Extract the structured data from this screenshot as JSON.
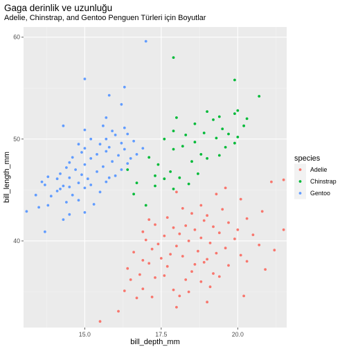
{
  "chart_data": {
    "type": "scatter",
    "title": "Gaga derinlik ve uzunluğu",
    "subtitle": "Adelie, Chinstrap, and Gentoo Penguen Türleri için Boyutlar",
    "xlabel": "bill_depth_mm",
    "ylabel": "bill_length_mm",
    "xlim": [
      13.0,
      21.6
    ],
    "ylim": [
      31.5,
      61.0
    ],
    "x_ticks": [
      15.0,
      17.5,
      20.0
    ],
    "x_tick_labels": [
      "15.0",
      "17.5",
      "20.0"
    ],
    "y_ticks": [
      40,
      50,
      60
    ],
    "y_tick_labels": [
      "40",
      "50",
      "60"
    ],
    "grid": true,
    "legend": {
      "title": "species",
      "position": "right"
    },
    "series": [
      {
        "name": "Adelie",
        "color": "#F8766D",
        "points": [
          [
            15.5,
            32.1
          ],
          [
            16.1,
            33.1
          ],
          [
            18.0,
            33.5
          ],
          [
            19.0,
            34.0
          ],
          [
            20.2,
            34.6
          ],
          [
            16.7,
            34.4
          ],
          [
            17.2,
            34.5
          ],
          [
            18.1,
            34.6
          ],
          [
            18.4,
            35.0
          ],
          [
            16.3,
            35.1
          ],
          [
            17.9,
            35.2
          ],
          [
            16.9,
            35.3
          ],
          [
            19.1,
            35.5
          ],
          [
            18.8,
            36.0
          ],
          [
            16.5,
            36.2
          ],
          [
            18.3,
            36.2
          ],
          [
            17.3,
            36.4
          ],
          [
            19.4,
            36.5
          ],
          [
            17.6,
            36.6
          ],
          [
            16.8,
            36.7
          ],
          [
            19.2,
            36.8
          ],
          [
            18.5,
            37.0
          ],
          [
            20.9,
            37.2
          ],
          [
            16.4,
            37.3
          ],
          [
            17.7,
            37.5
          ],
          [
            19.7,
            37.6
          ],
          [
            18.6,
            37.7
          ],
          [
            17.1,
            37.8
          ],
          [
            18.9,
            37.9
          ],
          [
            20.3,
            38.0
          ],
          [
            16.9,
            38.1
          ],
          [
            19.0,
            38.2
          ],
          [
            17.5,
            38.3
          ],
          [
            18.2,
            38.5
          ],
          [
            20.1,
            38.6
          ],
          [
            17.8,
            38.7
          ],
          [
            19.3,
            38.8
          ],
          [
            16.6,
            38.9
          ],
          [
            18.7,
            39.0
          ],
          [
            21.2,
            39.1
          ],
          [
            17.2,
            39.2
          ],
          [
            19.6,
            39.3
          ],
          [
            18.0,
            39.5
          ],
          [
            20.7,
            39.6
          ],
          [
            17.4,
            39.7
          ],
          [
            19.1,
            39.8
          ],
          [
            18.4,
            40.0
          ],
          [
            17.0,
            40.1
          ],
          [
            19.9,
            40.2
          ],
          [
            18.8,
            40.3
          ],
          [
            17.6,
            40.5
          ],
          [
            20.5,
            40.6
          ],
          [
            18.1,
            40.7
          ],
          [
            19.4,
            40.8
          ],
          [
            16.9,
            40.9
          ],
          [
            18.6,
            41.1
          ],
          [
            20.0,
            41.1
          ],
          [
            17.9,
            41.3
          ],
          [
            19.2,
            41.4
          ],
          [
            18.3,
            41.5
          ],
          [
            21.5,
            41.1
          ],
          [
            17.3,
            41.6
          ],
          [
            19.7,
            41.8
          ],
          [
            18.9,
            42.0
          ],
          [
            20.3,
            42.2
          ],
          [
            17.7,
            42.3
          ],
          [
            19.0,
            42.5
          ],
          [
            18.5,
            42.7
          ],
          [
            20.8,
            42.9
          ],
          [
            17.1,
            42.1
          ],
          [
            19.5,
            43.1
          ],
          [
            18.2,
            43.2
          ],
          [
            18.8,
            43.5
          ],
          [
            20.1,
            44.1
          ],
          [
            19.3,
            44.6
          ],
          [
            21.1,
            45.8
          ],
          [
            21.5,
            46.0
          ],
          [
            19.6,
            45.2
          ],
          [
            18.0,
            44.8
          ]
        ]
      },
      {
        "name": "Chinstrap",
        "color": "#00BA38",
        "points": [
          [
            17.0,
            43.5
          ],
          [
            16.6,
            44.6
          ],
          [
            17.9,
            45.1
          ],
          [
            17.3,
            45.4
          ],
          [
            18.4,
            45.6
          ],
          [
            16.7,
            45.7
          ],
          [
            17.6,
            46.1
          ],
          [
            18.1,
            46.2
          ],
          [
            17.3,
            46.4
          ],
          [
            18.7,
            46.6
          ],
          [
            17.8,
            46.8
          ],
          [
            16.4,
            47.0
          ],
          [
            17.4,
            47.5
          ],
          [
            18.5,
            47.8
          ],
          [
            19.0,
            48.1
          ],
          [
            17.1,
            48.2
          ],
          [
            19.4,
            48.4
          ],
          [
            18.8,
            48.5
          ],
          [
            17.9,
            49.0
          ],
          [
            19.6,
            49.2
          ],
          [
            18.2,
            49.3
          ],
          [
            19.9,
            49.6
          ],
          [
            18.6,
            49.7
          ],
          [
            17.6,
            50.0
          ],
          [
            19.3,
            50.1
          ],
          [
            20.0,
            50.2
          ],
          [
            18.3,
            50.4
          ],
          [
            19.7,
            50.5
          ],
          [
            18.9,
            50.6
          ],
          [
            17.9,
            50.8
          ],
          [
            19.5,
            51.0
          ],
          [
            20.2,
            51.3
          ],
          [
            18.6,
            51.5
          ],
          [
            19.2,
            51.9
          ],
          [
            20.3,
            52.0
          ],
          [
            18.0,
            52.1
          ],
          [
            19.4,
            52.2
          ],
          [
            19.9,
            52.5
          ],
          [
            20.0,
            52.8
          ],
          [
            19.0,
            52.7
          ],
          [
            20.7,
            54.2
          ],
          [
            19.9,
            55.8
          ],
          [
            17.9,
            58.0
          ]
        ]
      },
      {
        "name": "Gentoo",
        "color": "#619CFF",
        "points": [
          [
            13.1,
            42.9
          ],
          [
            13.7,
            40.9
          ],
          [
            14.3,
            42.1
          ],
          [
            13.5,
            43.3
          ],
          [
            14.5,
            42.6
          ],
          [
            13.8,
            43.5
          ],
          [
            15.0,
            42.8
          ],
          [
            13.9,
            44.4
          ],
          [
            14.1,
            44.9
          ],
          [
            14.4,
            43.8
          ],
          [
            15.3,
            43.6
          ],
          [
            14.8,
            44.0
          ],
          [
            13.4,
            44.5
          ],
          [
            14.6,
            44.5
          ],
          [
            15.5,
            44.8
          ],
          [
            14.2,
            45.1
          ],
          [
            15.0,
            45.2
          ],
          [
            14.3,
            45.4
          ],
          [
            13.7,
            45.5
          ],
          [
            14.5,
            45.3
          ],
          [
            15.2,
            45.5
          ],
          [
            13.6,
            45.8
          ],
          [
            14.8,
            45.7
          ],
          [
            15.7,
            45.8
          ],
          [
            14.1,
            46.1
          ],
          [
            15.1,
            46.1
          ],
          [
            14.5,
            46.2
          ],
          [
            15.8,
            46.2
          ],
          [
            13.8,
            46.3
          ],
          [
            14.9,
            46.5
          ],
          [
            16.0,
            46.4
          ],
          [
            14.2,
            46.6
          ],
          [
            15.4,
            46.8
          ],
          [
            14.7,
            47.0
          ],
          [
            16.2,
            47.0
          ],
          [
            14.4,
            47.2
          ],
          [
            15.6,
            47.3
          ],
          [
            15.0,
            47.5
          ],
          [
            16.4,
            47.6
          ],
          [
            14.5,
            47.7
          ],
          [
            15.9,
            47.8
          ],
          [
            15.2,
            48.1
          ],
          [
            16.5,
            48.1
          ],
          [
            14.6,
            48.2
          ],
          [
            16.1,
            48.4
          ],
          [
            15.4,
            48.5
          ],
          [
            16.7,
            48.5
          ],
          [
            14.9,
            48.7
          ],
          [
            15.7,
            48.8
          ],
          [
            16.3,
            49.0
          ],
          [
            15.0,
            49.1
          ],
          [
            15.8,
            49.2
          ],
          [
            16.9,
            49.1
          ],
          [
            14.8,
            49.5
          ],
          [
            15.5,
            49.5
          ],
          [
            16.2,
            49.6
          ],
          [
            16.6,
            49.8
          ],
          [
            15.7,
            50.0
          ],
          [
            15.2,
            50.0
          ],
          [
            16.0,
            50.4
          ],
          [
            16.4,
            50.5
          ],
          [
            15.9,
            50.8
          ],
          [
            15.0,
            50.9
          ],
          [
            16.3,
            51.1
          ],
          [
            15.6,
            51.3
          ],
          [
            14.3,
            51.3
          ],
          [
            15.7,
            52.1
          ],
          [
            16.2,
            53.4
          ],
          [
            15.8,
            54.3
          ],
          [
            16.3,
            55.1
          ],
          [
            15.0,
            55.9
          ],
          [
            17.0,
            59.6
          ]
        ]
      }
    ]
  }
}
